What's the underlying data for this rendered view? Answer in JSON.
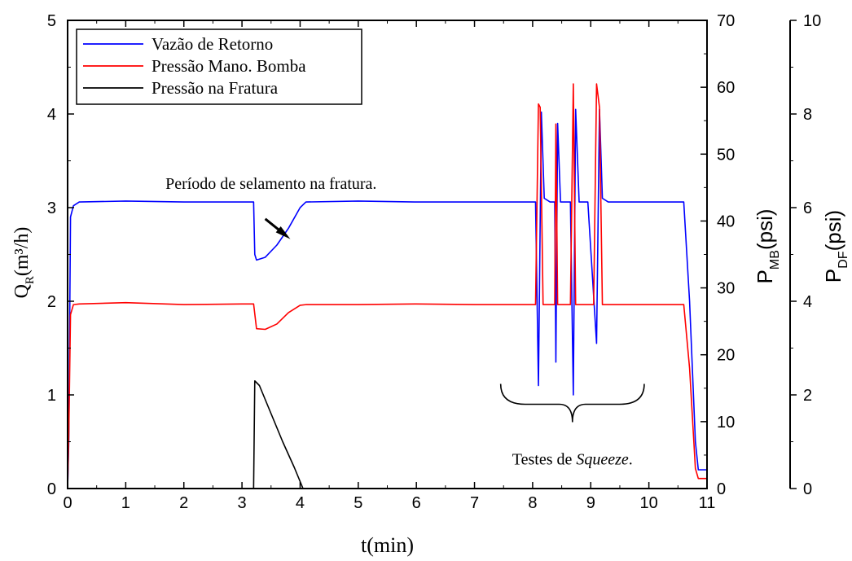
{
  "chart_data": {
    "type": "line",
    "xlabel": "t(min)",
    "xlim": [
      0,
      11
    ],
    "x_ticks": [
      0,
      1,
      2,
      3,
      4,
      5,
      6,
      7,
      8,
      9,
      10,
      11
    ],
    "axes": {
      "left": {
        "label_main": "Q",
        "label_sub": "R",
        "label_tail": "(m³/h)",
        "lim": [
          0,
          5
        ],
        "ticks": [
          0,
          1,
          2,
          3,
          4,
          5
        ]
      },
      "right1": {
        "label_main": "P",
        "label_sub": "MB",
        "label_tail": "(psi)",
        "lim": [
          0,
          70
        ],
        "ticks": [
          0,
          10,
          20,
          30,
          40,
          50,
          60,
          70
        ]
      },
      "right2": {
        "label_main": "P",
        "label_sub": "DF",
        "label_tail": "(psi)",
        "lim": [
          0,
          10
        ],
        "ticks": [
          0,
          2,
          4,
          6,
          8,
          10
        ]
      }
    },
    "legend": {
      "placement": "top-left"
    },
    "series": [
      {
        "name": "Vazão de Retorno",
        "axis": "left",
        "color": "#0000ff",
        "points": [
          [
            0.0,
            0.0
          ],
          [
            0.02,
            0.5
          ],
          [
            0.05,
            2.9
          ],
          [
            0.1,
            3.02
          ],
          [
            0.2,
            3.06
          ],
          [
            1.0,
            3.07
          ],
          [
            2.0,
            3.06
          ],
          [
            3.0,
            3.06
          ],
          [
            3.2,
            3.06
          ],
          [
            3.22,
            2.5
          ],
          [
            3.25,
            2.44
          ],
          [
            3.4,
            2.47
          ],
          [
            3.6,
            2.6
          ],
          [
            3.8,
            2.78
          ],
          [
            4.0,
            3.0
          ],
          [
            4.1,
            3.06
          ],
          [
            5.0,
            3.07
          ],
          [
            6.0,
            3.06
          ],
          [
            7.0,
            3.06
          ],
          [
            8.05,
            3.06
          ],
          [
            8.1,
            1.1
          ],
          [
            8.15,
            4.02
          ],
          [
            8.2,
            3.1
          ],
          [
            8.3,
            3.06
          ],
          [
            8.38,
            3.06
          ],
          [
            8.4,
            1.35
          ],
          [
            8.43,
            3.9
          ],
          [
            8.48,
            3.06
          ],
          [
            8.65,
            3.06
          ],
          [
            8.7,
            1.0
          ],
          [
            8.74,
            4.05
          ],
          [
            8.8,
            3.06
          ],
          [
            8.95,
            3.06
          ],
          [
            9.1,
            1.55
          ],
          [
            9.15,
            4.05
          ],
          [
            9.2,
            3.1
          ],
          [
            9.3,
            3.06
          ],
          [
            10.0,
            3.06
          ],
          [
            10.6,
            3.06
          ],
          [
            10.7,
            2.0
          ],
          [
            10.8,
            0.5
          ],
          [
            10.85,
            0.2
          ],
          [
            11.0,
            0.2
          ]
        ]
      },
      {
        "name": "Pressão Mano. Bomba",
        "axis": "right1",
        "color": "#ff0000",
        "points": [
          [
            0.0,
            0.0
          ],
          [
            0.02,
            8.0
          ],
          [
            0.05,
            26.0
          ],
          [
            0.1,
            27.5
          ],
          [
            0.2,
            27.6
          ],
          [
            1.0,
            27.8
          ],
          [
            2.0,
            27.5
          ],
          [
            3.0,
            27.6
          ],
          [
            3.2,
            27.6
          ],
          [
            3.25,
            23.9
          ],
          [
            3.4,
            23.8
          ],
          [
            3.6,
            24.6
          ],
          [
            3.8,
            26.3
          ],
          [
            4.0,
            27.4
          ],
          [
            4.1,
            27.5
          ],
          [
            5.0,
            27.5
          ],
          [
            6.0,
            27.6
          ],
          [
            7.0,
            27.5
          ],
          [
            8.05,
            27.5
          ],
          [
            8.1,
            57.5
          ],
          [
            8.13,
            57.0
          ],
          [
            8.18,
            27.5
          ],
          [
            8.38,
            27.5
          ],
          [
            8.4,
            54.5
          ],
          [
            8.43,
            27.5
          ],
          [
            8.65,
            27.5
          ],
          [
            8.7,
            60.5
          ],
          [
            8.74,
            27.5
          ],
          [
            9.05,
            27.5
          ],
          [
            9.1,
            60.5
          ],
          [
            9.15,
            57.0
          ],
          [
            9.2,
            27.5
          ],
          [
            10.0,
            27.5
          ],
          [
            10.6,
            27.5
          ],
          [
            10.7,
            18.0
          ],
          [
            10.8,
            3.0
          ],
          [
            10.85,
            1.5
          ],
          [
            11.0,
            1.5
          ]
        ]
      },
      {
        "name": "Pressão na Fratura",
        "axis": "right2",
        "color": "#000000",
        "points": [
          [
            3.2,
            0.0
          ],
          [
            3.22,
            2.3
          ],
          [
            3.3,
            2.2
          ],
          [
            3.5,
            1.6
          ],
          [
            3.7,
            1.0
          ],
          [
            3.9,
            0.45
          ],
          [
            4.0,
            0.15
          ],
          [
            4.05,
            0.0
          ]
        ]
      }
    ],
    "annotations": [
      {
        "text": "Período de selamento na fratura.",
        "x": 3.5,
        "y": 3.2,
        "arrow_to": [
          3.72,
          2.72
        ],
        "text_at": [
          3.4,
          2.88
        ]
      },
      {
        "text_main": "Testes de ",
        "text_italic": "Squeeze",
        "text_tail": ".",
        "brace_from": 7.45,
        "brace_to": 9.92,
        "brace_y": 0.9
      }
    ]
  }
}
